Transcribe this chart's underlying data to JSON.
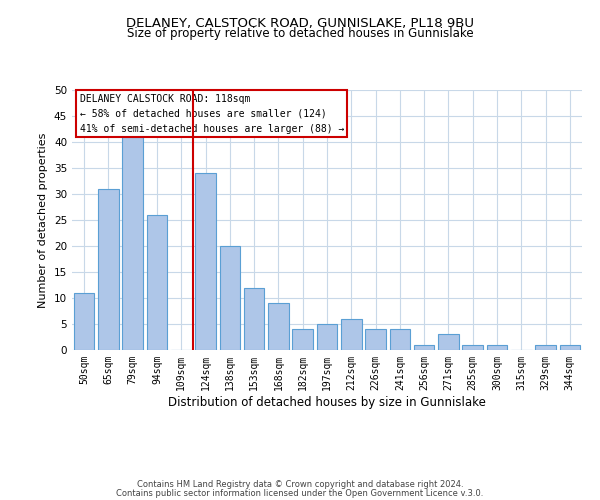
{
  "title": "DELANEY, CALSTOCK ROAD, GUNNISLAKE, PL18 9BU",
  "subtitle": "Size of property relative to detached houses in Gunnislake",
  "xlabel": "Distribution of detached houses by size in Gunnislake",
  "ylabel": "Number of detached properties",
  "categories": [
    "50sqm",
    "65sqm",
    "79sqm",
    "94sqm",
    "109sqm",
    "124sqm",
    "138sqm",
    "153sqm",
    "168sqm",
    "182sqm",
    "197sqm",
    "212sqm",
    "226sqm",
    "241sqm",
    "256sqm",
    "271sqm",
    "285sqm",
    "300sqm",
    "315sqm",
    "329sqm",
    "344sqm"
  ],
  "values": [
    11,
    31,
    41,
    26,
    0,
    34,
    20,
    12,
    9,
    4,
    5,
    6,
    4,
    4,
    1,
    3,
    1,
    1,
    0,
    1,
    1
  ],
  "bar_color": "#aec6e8",
  "bar_edge_color": "#5a9fd4",
  "vline_x_index": 5,
  "vline_color": "#cc0000",
  "ylim": [
    0,
    50
  ],
  "yticks": [
    0,
    5,
    10,
    15,
    20,
    25,
    30,
    35,
    40,
    45,
    50
  ],
  "annotation_title": "DELANEY CALSTOCK ROAD: 118sqm",
  "annotation_line1": "← 58% of detached houses are smaller (124)",
  "annotation_line2": "41% of semi-detached houses are larger (88) →",
  "annotation_box_color": "#cc0000",
  "footer_line1": "Contains HM Land Registry data © Crown copyright and database right 2024.",
  "footer_line2": "Contains public sector information licensed under the Open Government Licence v.3.0.",
  "title_fontsize": 9.5,
  "subtitle_fontsize": 8.5,
  "background_color": "#ffffff",
  "grid_color": "#c8d8e8"
}
